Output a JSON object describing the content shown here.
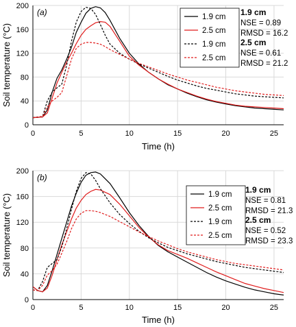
{
  "chart_data": [
    {
      "type": "line",
      "panel_label": "(a)",
      "xlabel": "Time (h)",
      "ylabel": "Soil temperature (°C)",
      "xlim": [
        0,
        26
      ],
      "ylim": [
        0,
        200
      ],
      "xticks": [
        0,
        5,
        10,
        15,
        20,
        25
      ],
      "yticks": [
        0,
        40,
        80,
        120,
        160,
        200
      ],
      "grid": true,
      "legend_position": "top-right",
      "series": [
        {
          "name": "1.9 cm",
          "style": "solid",
          "color": "#000000",
          "x": [
            0,
            1,
            1.5,
            2,
            2.5,
            3,
            3.5,
            4,
            4.5,
            5,
            5.5,
            6,
            6.5,
            7,
            7.5,
            8,
            9,
            10,
            11,
            12,
            13,
            14,
            15,
            16,
            17,
            18,
            19,
            20,
            21,
            22,
            23,
            24,
            25,
            26
          ],
          "y": [
            12,
            13,
            25,
            55,
            78,
            92,
            110,
            130,
            155,
            172,
            187,
            195,
            198,
            196,
            188,
            175,
            145,
            120,
            102,
            88,
            77,
            67,
            60,
            53,
            47,
            42,
            38,
            35,
            32,
            30,
            28,
            27,
            26,
            25
          ]
        },
        {
          "name": "2.5 cm",
          "style": "solid",
          "color": "#e01b1b",
          "x": [
            0,
            1,
            1.5,
            2,
            2.5,
            3,
            3.5,
            4,
            4.5,
            5,
            5.5,
            6,
            6.5,
            7,
            7.5,
            8,
            9,
            10,
            11,
            12,
            13,
            14,
            15,
            16,
            17,
            18,
            19,
            20,
            21,
            22,
            23,
            24,
            25,
            26
          ],
          "y": [
            12,
            13,
            20,
            45,
            70,
            88,
            105,
            120,
            136,
            150,
            160,
            166,
            171,
            173,
            172,
            165,
            140,
            115,
            100,
            88,
            77,
            68,
            60,
            54,
            48,
            43,
            39,
            36,
            33,
            31,
            30,
            29,
            28,
            27
          ]
        },
        {
          "name": "1.9 cm",
          "style": "dashed",
          "color": "#000000",
          "x": [
            0,
            1,
            1.5,
            2,
            2.5,
            3,
            3.5,
            4,
            4.5,
            5,
            5.5,
            6,
            6.5,
            7,
            7.5,
            8,
            9,
            10,
            11,
            12,
            13,
            14,
            15,
            16,
            17,
            18,
            19,
            20,
            21,
            22,
            23,
            24,
            25,
            26
          ],
          "y": [
            12,
            14,
            40,
            55,
            62,
            68,
            100,
            140,
            172,
            190,
            197,
            195,
            185,
            168,
            150,
            135,
            120,
            110,
            102,
            95,
            88,
            81,
            75,
            70,
            65,
            61,
            58,
            55,
            52,
            50,
            48,
            47,
            46,
            45
          ]
        },
        {
          "name": "2.5 cm",
          "style": "dashed",
          "color": "#e01b1b",
          "x": [
            0,
            1,
            1.5,
            2,
            2.5,
            3,
            3.5,
            4,
            4.5,
            5,
            5.5,
            6,
            6.5,
            7,
            7.5,
            8,
            9,
            10,
            11,
            12,
            13,
            14,
            15,
            16,
            17,
            18,
            19,
            20,
            21,
            22,
            23,
            24,
            25,
            26
          ],
          "y": [
            12,
            14,
            30,
            40,
            46,
            54,
            82,
            110,
            128,
            135,
            138,
            138,
            137,
            135,
            131,
            126,
            118,
            110,
            103,
            97,
            91,
            85,
            80,
            75,
            71,
            67,
            63,
            60,
            57,
            55,
            53,
            51,
            50,
            49
          ]
        }
      ],
      "legend": [
        "1.9 cm",
        "2.5 cm",
        "1.9 cm",
        "2.5 cm"
      ],
      "stats": [
        {
          "label": "1.9 cm",
          "nse": "NSE = 0.89",
          "rmsd": "RMSD = 16.2"
        },
        {
          "label": "2.5 cm",
          "nse": "NSE = 0.61",
          "rmsd": "RMSD = 21.2"
        }
      ]
    },
    {
      "type": "line",
      "panel_label": "(b)",
      "xlabel": "Time (h)",
      "ylabel": "Soil temperature (°C)",
      "xlim": [
        0,
        26
      ],
      "ylim": [
        0,
        200
      ],
      "xticks": [
        0,
        5,
        10,
        15,
        20,
        25
      ],
      "yticks": [
        0,
        40,
        80,
        120,
        160,
        200
      ],
      "grid": true,
      "legend_position": "top-right",
      "series": [
        {
          "name": "1.9 cm",
          "style": "solid",
          "color": "#000000",
          "x": [
            0,
            0.5,
            1,
            1.5,
            2,
            2.5,
            3,
            3.5,
            4,
            4.5,
            5,
            5.5,
            6,
            6.5,
            7,
            8,
            9,
            10,
            11,
            12,
            13,
            14,
            15,
            16,
            17,
            18,
            19,
            20,
            21,
            22,
            23,
            24,
            25,
            26
          ],
          "y": [
            20,
            14,
            12,
            22,
            45,
            70,
            95,
            120,
            145,
            165,
            182,
            193,
            197,
            198,
            195,
            180,
            158,
            135,
            115,
            98,
            84,
            74,
            66,
            58,
            50,
            42,
            35,
            29,
            24,
            19,
            15,
            12,
            9,
            7
          ]
        },
        {
          "name": "2.5 cm",
          "style": "solid",
          "color": "#e01b1b",
          "x": [
            0,
            0.5,
            1,
            1.5,
            2,
            2.5,
            3,
            3.5,
            4,
            4.5,
            5,
            5.5,
            6,
            6.5,
            7,
            8,
            9,
            10,
            11,
            12,
            13,
            14,
            15,
            16,
            17,
            18,
            19,
            20,
            21,
            22,
            23,
            24,
            25,
            26
          ],
          "y": [
            20,
            14,
            12,
            18,
            38,
            62,
            85,
            105,
            125,
            142,
            154,
            163,
            168,
            171,
            170,
            163,
            148,
            130,
            112,
            97,
            85,
            76,
            70,
            64,
            57,
            50,
            43,
            37,
            31,
            25,
            21,
            17,
            14,
            11
          ]
        },
        {
          "name": "1.9 cm",
          "style": "dashed",
          "color": "#000000",
          "x": [
            0,
            0.5,
            1,
            1.5,
            2,
            2.5,
            3,
            3.5,
            4,
            4.5,
            5,
            5.5,
            6,
            6.5,
            7,
            8,
            9,
            10,
            11,
            12,
            13,
            14,
            15,
            16,
            17,
            18,
            19,
            20,
            21,
            22,
            23,
            24,
            25,
            26
          ],
          "y": [
            15,
            14,
            28,
            50,
            56,
            62,
            82,
            110,
            140,
            168,
            188,
            197,
            195,
            185,
            172,
            150,
            132,
            118,
            106,
            96,
            88,
            81,
            76,
            71,
            67,
            63,
            59,
            56,
            53,
            50,
            48,
            46,
            44,
            42
          ]
        },
        {
          "name": "2.5 cm",
          "style": "dashed",
          "color": "#e01b1b",
          "x": [
            0,
            0.5,
            1,
            1.5,
            2,
            2.5,
            3,
            3.5,
            4,
            4.5,
            5,
            5.5,
            6,
            6.5,
            7,
            8,
            9,
            10,
            11,
            12,
            13,
            14,
            15,
            16,
            17,
            18,
            19,
            20,
            21,
            22,
            23,
            24,
            25,
            26
          ],
          "y": [
            15,
            14,
            22,
            38,
            45,
            55,
            72,
            90,
            110,
            125,
            134,
            138,
            138,
            137,
            135,
            129,
            121,
            113,
            105,
            98,
            91,
            85,
            79,
            74,
            70,
            66,
            62,
            59,
            56,
            54,
            52,
            50,
            48,
            46
          ]
        }
      ],
      "legend": [
        "1.9 cm",
        "2.5 cm",
        "1.9 cm",
        "2.5 cm"
      ],
      "stats": [
        {
          "label": "1.9 cm",
          "nse": "NSE = 0.81",
          "rmsd": "RMSD = 21.3"
        },
        {
          "label": "2.5 cm",
          "nse": "NSE = 0.52",
          "rmsd": "RMSD = 23.3"
        }
      ]
    }
  ]
}
